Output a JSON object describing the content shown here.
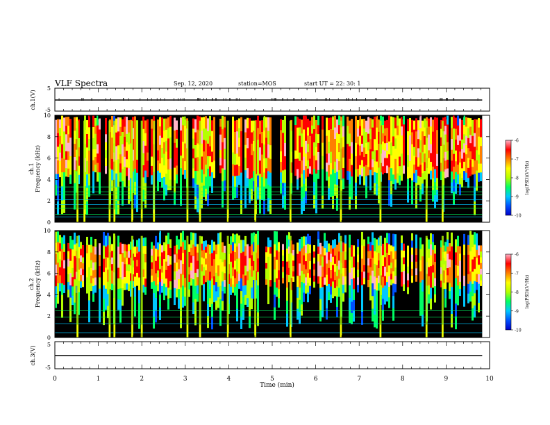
{
  "header": {
    "title": "VLF Spectra",
    "date": "Sep. 12, 2020",
    "station": "station=MOS",
    "start_ut": "start UT =  22: 30: 1"
  },
  "colors": {
    "colormap": [
      "#000000",
      "#0000c8",
      "#0050ff",
      "#00c8ff",
      "#00ff64",
      "#b4ff00",
      "#ffff00",
      "#ff8000",
      "#ff0000",
      "#ffb4c8"
    ],
    "line": "#000000"
  },
  "chart_data": [
    {
      "id": "ch1-voltage",
      "type": "line",
      "ylabel": "ch.1(V)",
      "ylim": [
        -5,
        5
      ],
      "yticks": [
        "5",
        "-5"
      ],
      "xlim": [
        0,
        10
      ],
      "series": [
        {
          "x": [
            0,
            9.83
          ],
          "y": [
            0,
            0
          ]
        }
      ]
    },
    {
      "id": "ch1-spectrogram",
      "type": "heatmap",
      "ylabel_line1": "ch.1",
      "ylabel_line2": "Frequency (kHz)",
      "ylim": [
        0,
        10
      ],
      "yticks": [
        "0",
        "2",
        "4",
        "6",
        "8",
        "10"
      ],
      "xlim": [
        0,
        10
      ],
      "data_extent_min": [
        0,
        9.83
      ],
      "colorbar": {
        "label": "log(PSD)(V²/Hz)",
        "range": [
          -10,
          -6
        ],
        "ticks": [
          "-6",
          "-7",
          "-8",
          "-9",
          "-10"
        ]
      },
      "emission_band_khz": [
        4.5,
        9.5
      ],
      "narrowband_lines_khz": [
        0.5,
        0.75,
        1.3,
        1.65,
        2.1,
        2.55,
        2.85,
        3.3
      ],
      "bright_spikes_min": [
        0.52,
        0.68,
        1.26,
        1.37,
        1.78,
        2.0,
        2.28,
        3.05,
        3.34,
        3.98,
        4.61,
        5.42,
        6.58,
        7.49,
        8.55,
        8.92
      ]
    },
    {
      "id": "ch2-spectrogram",
      "type": "heatmap",
      "ylabel_line1": "ch.2",
      "ylabel_line2": "Frequency (kHz)",
      "ylim": [
        0,
        10
      ],
      "yticks": [
        "0",
        "2",
        "4",
        "6",
        "8",
        "10"
      ],
      "xlim": [
        0,
        10
      ],
      "data_extent_min": [
        0,
        9.83
      ],
      "colorbar": {
        "label": "log(PSD)(V²/Hz)",
        "range": [
          -10,
          -6
        ],
        "ticks": [
          "-6",
          "-7",
          "-8",
          "-9",
          "-10"
        ]
      },
      "emission_band_khz": [
        5.0,
        8.5
      ],
      "narrowband_lines_khz": [
        0.45,
        1.3,
        1.9,
        2.5
      ],
      "bright_spikes_min": [
        0.52,
        1.26,
        1.37,
        1.78,
        2.0,
        3.05,
        3.34,
        3.98,
        4.61,
        5.42,
        6.58,
        7.49,
        8.55,
        8.92
      ]
    },
    {
      "id": "ch3-voltage",
      "type": "line",
      "ylabel": "ch.3(V)",
      "ylim": [
        -5,
        5
      ],
      "yticks": [
        "5",
        "-5"
      ],
      "xlabel": "Time (min)",
      "xlim": [
        0,
        10
      ],
      "xticks": [
        "0",
        "1",
        "2",
        "3",
        "4",
        "5",
        "6",
        "7",
        "8",
        "9",
        "10"
      ],
      "series": [
        {
          "x": [
            0,
            9.83
          ],
          "y": [
            0,
            0
          ]
        }
      ]
    }
  ]
}
